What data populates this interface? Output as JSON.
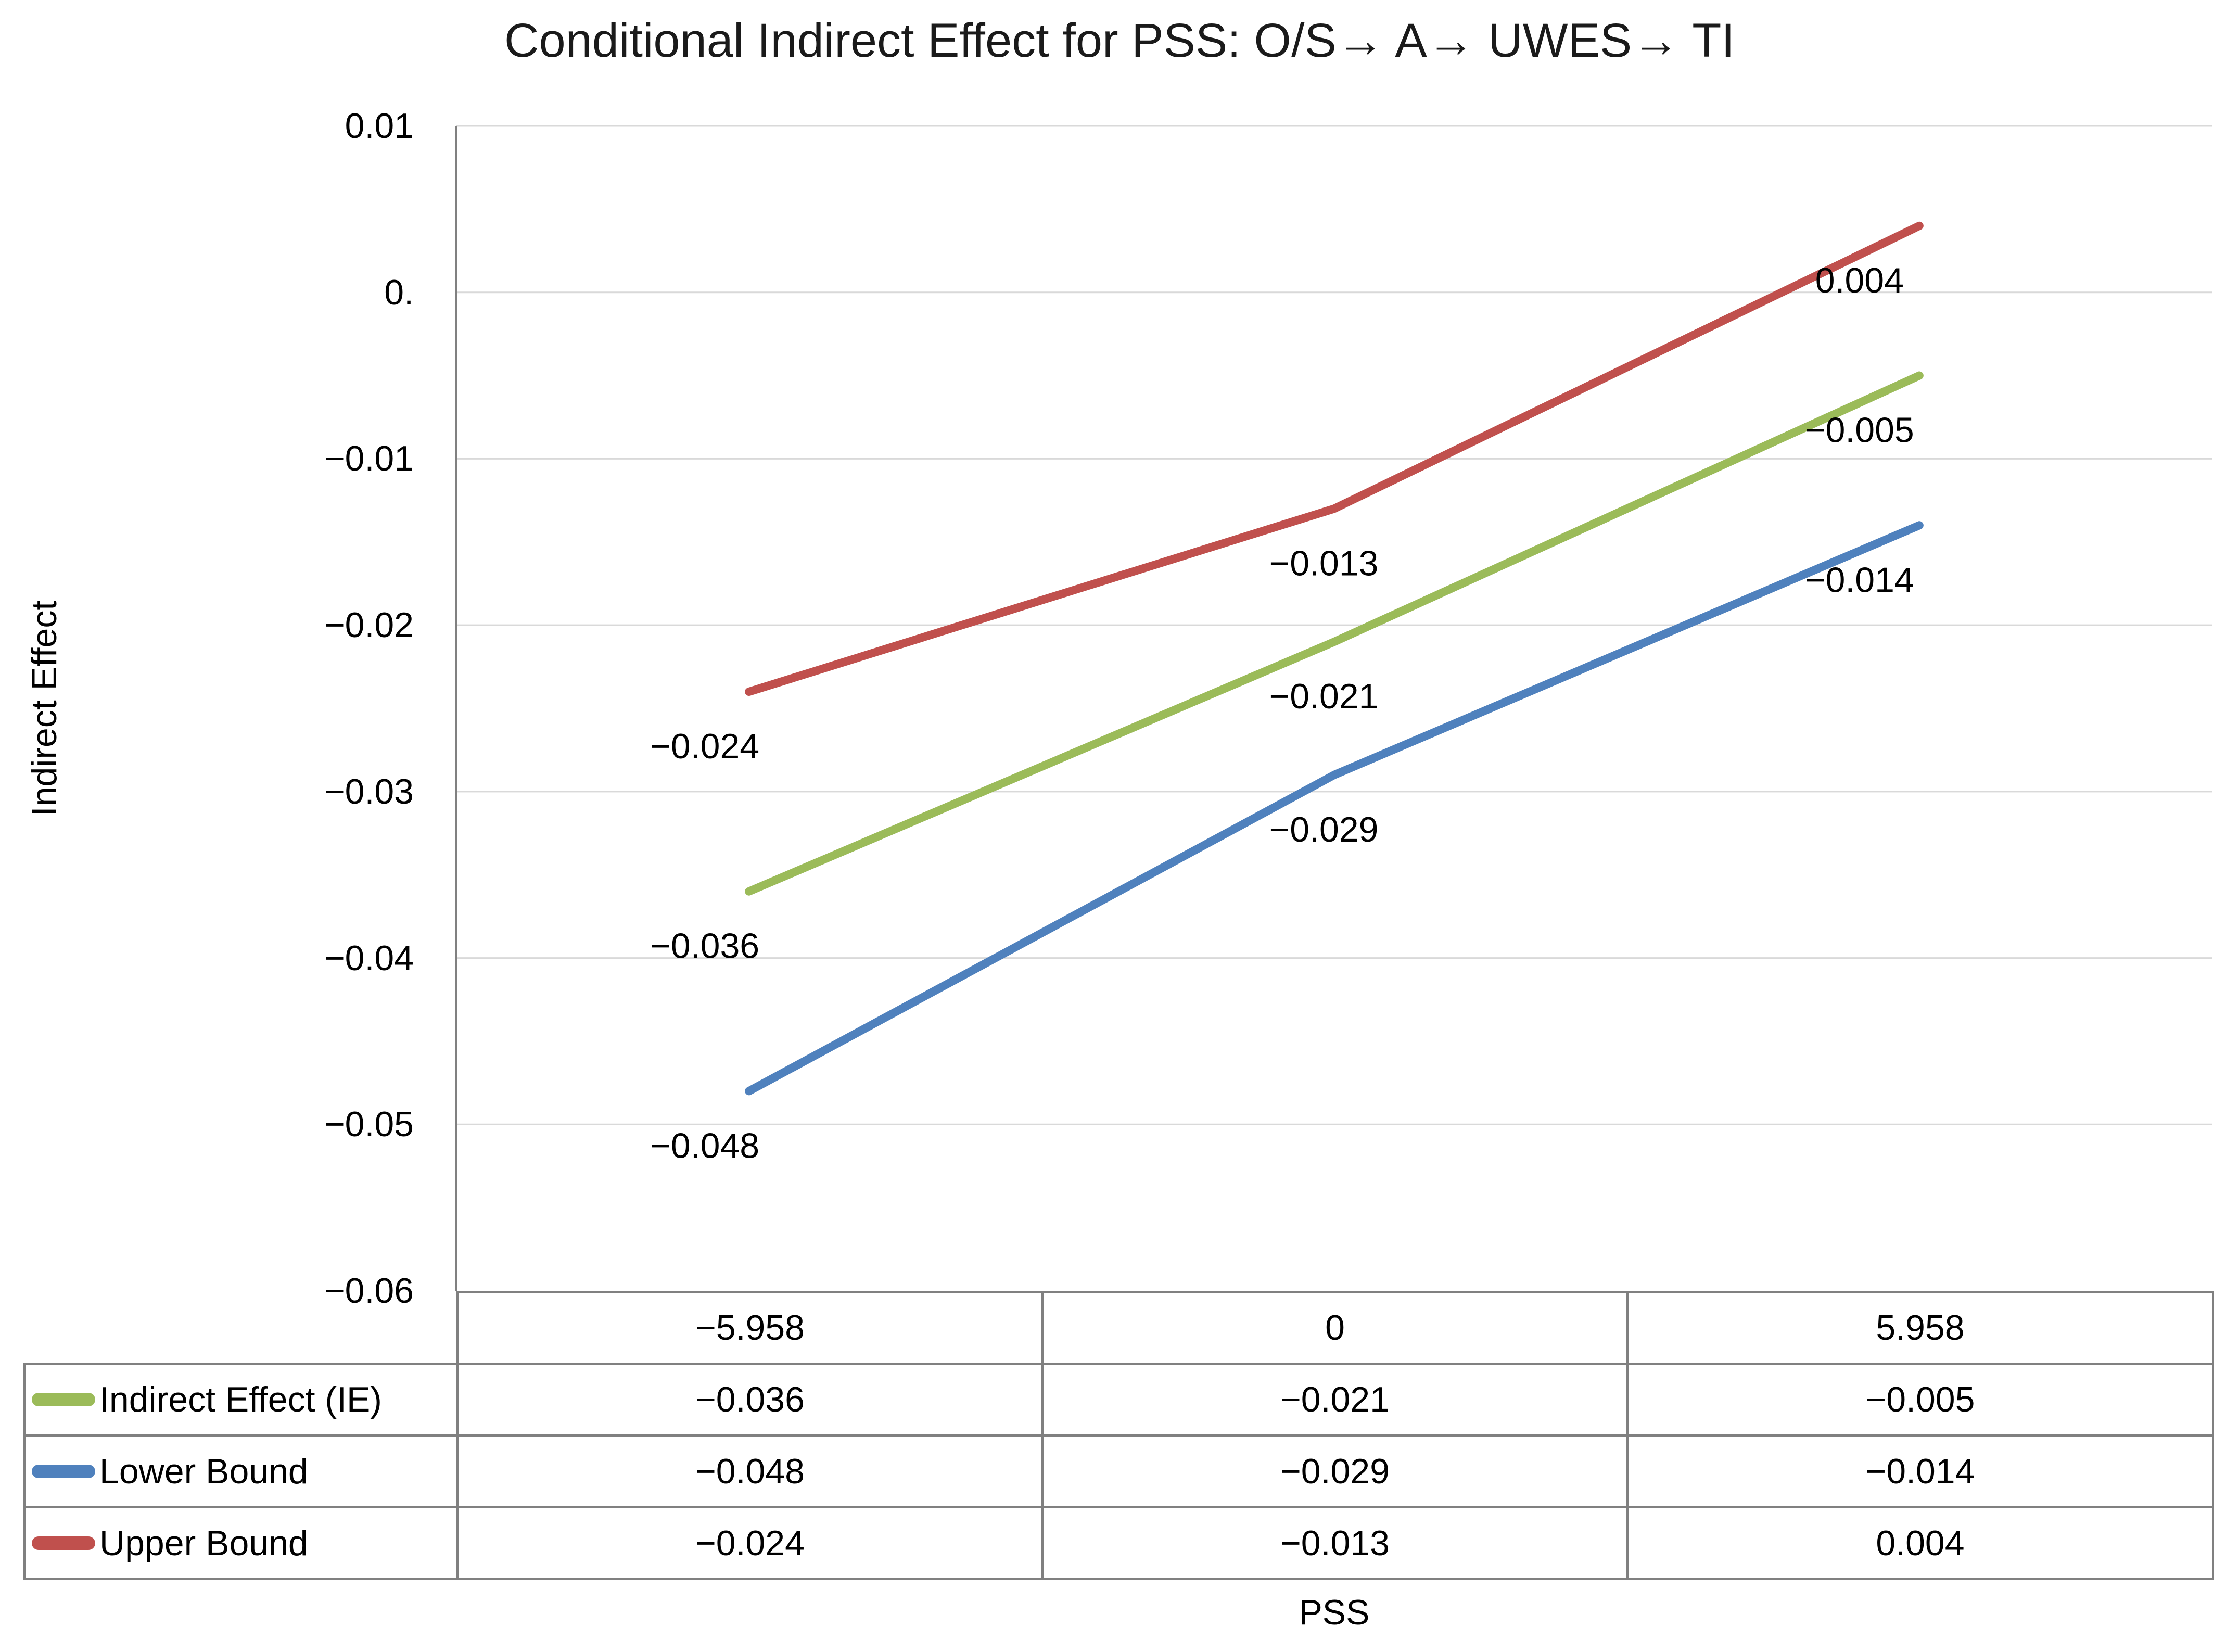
{
  "title": "Conditional Indirect Effect for PSS: O/S→ A→ UWES→ TI",
  "y_axis": {
    "title": "Indirect Effect",
    "ticks": [
      "0.01",
      "0.",
      "−0.01",
      "−0.02",
      "−0.03",
      "−0.04",
      "−0.05",
      "−0.06"
    ]
  },
  "x_axis": {
    "title": "PSS",
    "categories": [
      "−5.958",
      "0",
      "5.958"
    ]
  },
  "chart_data": {
    "type": "line",
    "title": "Conditional Indirect Effect for PSS: O/S→ A→ UWES→ TI",
    "xlabel": "PSS",
    "ylabel": "Indirect Effect",
    "categories": [
      -5.958,
      0,
      5.958
    ],
    "ylim": [
      -0.06,
      0.01
    ],
    "ytick_step": 0.01,
    "grid": true,
    "legend_position": "table-left",
    "colors": {
      "gridline": "#D9D9D9",
      "axis": "#808080",
      "table_border": "#808080"
    },
    "series": [
      {
        "name": "Indirect Effect (IE)",
        "color": "#9BBB59",
        "values": [
          -0.036,
          -0.021,
          -0.005
        ],
        "labels": [
          "−0.036",
          "−0.021",
          "−0.005"
        ]
      },
      {
        "name": "Lower Bound",
        "color": "#4F81BD",
        "values": [
          -0.048,
          -0.029,
          -0.014
        ],
        "labels": [
          "−0.048",
          "−0.029",
          "−0.014"
        ]
      },
      {
        "name": "Upper Bound",
        "color": "#C0504D",
        "values": [
          -0.024,
          -0.013,
          0.004
        ],
        "labels": [
          "−0.024",
          "−0.013",
          "0.004"
        ]
      }
    ]
  }
}
